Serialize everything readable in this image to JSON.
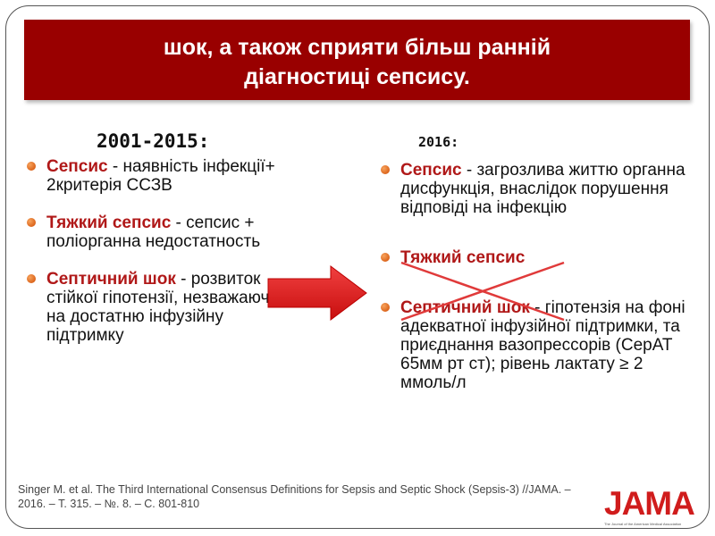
{
  "banner": {
    "line1": "шок, а також сприяти більш ранній",
    "line2": "діагностиці сепсису."
  },
  "left": {
    "heading": "2001-2015:",
    "items": [
      {
        "term": "Сепсис",
        "text": " - наявність інфекції+ 2критерія ССЗВ"
      },
      {
        "term": "Тяжкий сепсис",
        "text": " - сепсис +  поліорганна недостатность"
      },
      {
        "term": "Септичний шок",
        "text": " - розвиток стійкої гіпотензії, незважаючи на достатню інфузійну підтримку"
      }
    ]
  },
  "right": {
    "heading": "2016:",
    "items": [
      {
        "term": "Сепсис",
        "text": " - загрозлива життю органна дисфункція, внаслідок порушення відповіді на інфекцію"
      },
      {
        "term": "Тяжкий сепсис",
        "text": ""
      },
      {
        "term": "Септичний шок",
        "text": " - гіпотензія на фоні адекватної інфузійної підтримки, та приєднання вазопрессорів (СерАТ 65мм рт ст); рівень лактату ≥ 2 ммоль/л"
      }
    ]
  },
  "citation": {
    "line1": "Singer M. et al. The Third International Consensus Definitions for Sepsis and Septic Shock (Sepsis-3) //JAMA. –",
    "line2": "2016. – Т. 315. – №. 8. – С. 801-810"
  },
  "logo": {
    "name": "JAMA",
    "subtitle": "The Journal of the American Medical Association"
  },
  "colors": {
    "banner": "#990000",
    "term": "#b01818",
    "arrow": "#e21b1b"
  }
}
